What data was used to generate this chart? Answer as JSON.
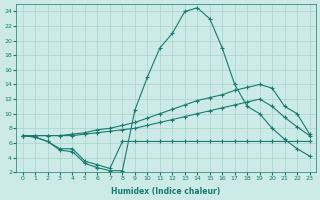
{
  "xlabel": "Humidex (Indice chaleur)",
  "background_color": "#cceae6",
  "grid_color": "#aad4cf",
  "line_color": "#1a7a6e",
  "xlim": [
    -0.5,
    23.5
  ],
  "ylim": [
    2,
    25
  ],
  "yticks": [
    2,
    4,
    6,
    8,
    10,
    12,
    14,
    16,
    18,
    20,
    22,
    24
  ],
  "xticks": [
    0,
    1,
    2,
    3,
    4,
    5,
    6,
    7,
    8,
    9,
    10,
    11,
    12,
    13,
    14,
    15,
    16,
    17,
    18,
    19,
    20,
    21,
    22,
    23
  ],
  "line1_x": [
    0,
    1,
    2,
    3,
    4,
    5,
    6,
    7,
    8,
    9,
    10,
    11,
    12,
    13,
    14,
    15,
    16,
    17,
    18,
    19,
    20,
    21,
    22,
    23
  ],
  "line1_y": [
    7.0,
    6.8,
    6.2,
    5.2,
    5.2,
    3.5,
    3.0,
    2.5,
    6.2,
    6.2,
    6.2,
    6.2,
    6.2,
    6.2,
    6.2,
    6.2,
    6.2,
    6.2,
    6.2,
    6.2,
    6.2,
    6.2,
    6.2,
    6.2
  ],
  "line2_x": [
    0,
    1,
    2,
    3,
    4,
    5,
    6,
    7,
    8,
    9,
    10,
    11,
    12,
    13,
    14,
    15,
    16,
    17,
    18,
    19,
    20,
    21,
    22,
    23
  ],
  "line2_y": [
    7.0,
    7.0,
    7.0,
    7.0,
    7.0,
    7.2,
    7.4,
    7.6,
    7.8,
    8.0,
    8.4,
    8.8,
    9.2,
    9.6,
    10.0,
    10.4,
    10.8,
    11.2,
    11.6,
    12.0,
    11.0,
    9.5,
    8.2,
    7.0
  ],
  "line3_x": [
    0,
    1,
    2,
    3,
    4,
    5,
    6,
    7,
    8,
    9,
    10,
    11,
    12,
    13,
    14,
    15,
    16,
    17,
    18,
    19,
    20,
    21,
    22,
    23
  ],
  "line3_y": [
    7.0,
    7.0,
    7.0,
    7.0,
    7.2,
    7.4,
    7.8,
    8.0,
    8.4,
    8.8,
    9.4,
    10.0,
    10.6,
    11.2,
    11.8,
    12.2,
    12.6,
    13.2,
    13.6,
    14.0,
    13.5,
    11.0,
    10.0,
    7.2
  ],
  "line4_x": [
    0,
    1,
    2,
    3,
    4,
    5,
    6,
    7,
    8,
    9,
    10,
    11,
    12,
    13,
    14,
    15,
    16,
    17,
    18,
    19,
    20,
    21,
    22,
    23
  ],
  "line4_y": [
    7.0,
    6.8,
    6.2,
    5.0,
    4.8,
    3.2,
    2.6,
    2.2,
    2.2,
    10.5,
    15.0,
    19.0,
    21.0,
    24.0,
    24.5,
    23.0,
    19.0,
    14.0,
    11.0,
    10.0,
    8.0,
    6.5,
    5.2,
    4.2
  ]
}
